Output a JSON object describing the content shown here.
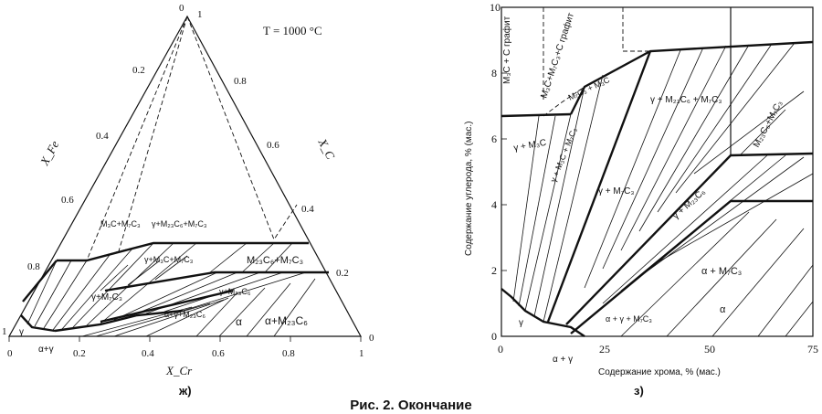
{
  "figure_caption": "Рис. 2. Окончание",
  "ternary": {
    "panel_label": "ж)",
    "temperature": "T = 1000 °C",
    "apex_labels": {
      "top_zero": "0",
      "top_one": "1",
      "left": "1",
      "bottom_left": "0",
      "bottom_right": "1",
      "right_zero": "0"
    },
    "left_axis_title": "X_Fe",
    "right_axis_title": "X_C",
    "bottom_axis_title": "X_Cr",
    "left_ticks": [
      "0.2",
      "0.4",
      "0.6",
      "0.8"
    ],
    "right_ticks": [
      "0.8",
      "0.6",
      "0.4",
      "0.2"
    ],
    "bottom_ticks": [
      "0.2",
      "0.4",
      "0.6",
      "0.8"
    ],
    "regions": [
      "M₃C+M₇C₃",
      "γ+M₂₃C₆+M₇C₃",
      "γ+M₃C+M₇C₃",
      "M₂₃C₆+M₇C₃",
      "γ+M₇C₃",
      "γ+M₂₃C₆",
      "α+γ+M₂₃C₆",
      "α",
      "α+M₂₃C₆",
      "γ",
      "α+γ"
    ]
  },
  "section": {
    "panel_label": "з)",
    "x_axis_title": "Содержание хрома, % (мас.)",
    "y_axis_title": "Содержание углерода, % (мас.)",
    "x_ticks": [
      "0",
      "25",
      "50",
      "75"
    ],
    "y_ticks": [
      "0",
      "2",
      "4",
      "6",
      "8",
      "10"
    ],
    "regions": [
      "M₃C + C графит",
      "M₃C+M₇C₃+C графит",
      "M₇C₃ + M₃C",
      "γ + M₃C",
      "γ + M₃C + M₇C₃",
      "γ + M₂₃C₆ + M₇C₃",
      "M₂₃C₆+M₇C₃",
      "γ + M₇C₃",
      "γ + M₂₃C₆",
      "α + M₇C₃",
      "α + γ + M₇C₃",
      "α",
      "γ",
      "α + γ"
    ]
  }
}
